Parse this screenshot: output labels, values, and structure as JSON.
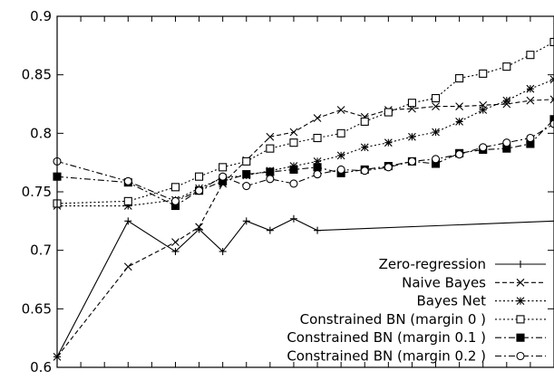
{
  "chart_data": {
    "type": "line",
    "title": "",
    "xlabel": "",
    "ylabel": "",
    "ylim": [
      0.6,
      0.9
    ],
    "xlim": [
      0,
      21
    ],
    "yticks": [
      "0.6",
      "0.65",
      "0.7",
      "0.75",
      "0.8",
      "0.85",
      "0.9"
    ],
    "grid": false,
    "legend_position": "bottom-right",
    "series": [
      {
        "name": "Zero-regression",
        "marker": "plus",
        "dash": "solid",
        "x": [
          0,
          3,
          5,
          6,
          7,
          8,
          9,
          10,
          11,
          21
        ],
        "y": [
          0.609,
          0.725,
          0.699,
          0.718,
          0.699,
          0.725,
          0.717,
          0.727,
          0.717,
          0.725
        ]
      },
      {
        "name": "Naive Bayes",
        "marker": "x",
        "dash": "dashed",
        "x": [
          0,
          3,
          5,
          6,
          7,
          8,
          9,
          10,
          11,
          12,
          13,
          14,
          15,
          16,
          17,
          18,
          19,
          20,
          21
        ],
        "y": [
          0.609,
          0.686,
          0.707,
          0.72,
          0.757,
          0.777,
          0.797,
          0.801,
          0.813,
          0.82,
          0.814,
          0.82,
          0.821,
          0.823,
          0.823,
          0.824,
          0.825,
          0.828,
          0.829
        ]
      },
      {
        "name": "Bayes Net",
        "marker": "star",
        "dash": "dotted",
        "x": [
          0,
          3,
          5,
          6,
          7,
          8,
          9,
          10,
          11,
          12,
          13,
          14,
          15,
          16,
          17,
          18,
          19,
          20,
          21
        ],
        "y": [
          0.738,
          0.738,
          0.743,
          0.753,
          0.762,
          0.764,
          0.768,
          0.772,
          0.776,
          0.781,
          0.788,
          0.792,
          0.797,
          0.801,
          0.81,
          0.82,
          0.828,
          0.838,
          0.846
        ]
      },
      {
        "name": "Constrained BN (margin 0 )",
        "marker": "square-open",
        "dash": "dotted",
        "x": [
          0,
          3,
          5,
          6,
          7,
          8,
          9,
          10,
          11,
          12,
          13,
          14,
          15,
          16,
          17,
          18,
          19,
          20,
          21
        ],
        "y": [
          0.74,
          0.742,
          0.754,
          0.763,
          0.771,
          0.776,
          0.787,
          0.792,
          0.796,
          0.8,
          0.81,
          0.818,
          0.826,
          0.83,
          0.847,
          0.851,
          0.857,
          0.867,
          0.878
        ]
      },
      {
        "name": "Constrained BN (margin 0.1 )",
        "marker": "square-filled",
        "dash": "dashdot",
        "x": [
          0,
          3,
          5,
          6,
          7,
          8,
          9,
          10,
          11,
          12,
          13,
          14,
          15,
          16,
          17,
          18,
          19,
          20,
          21
        ],
        "y": [
          0.763,
          0.758,
          0.738,
          0.751,
          0.759,
          0.765,
          0.767,
          0.769,
          0.771,
          0.766,
          0.769,
          0.772,
          0.776,
          0.774,
          0.783,
          0.786,
          0.787,
          0.791,
          0.812
        ]
      },
      {
        "name": "Constrained BN (margin 0.2 )",
        "marker": "circle-open",
        "dash": "dashdot",
        "x": [
          0,
          3,
          5,
          6,
          7,
          8,
          9,
          10,
          11,
          12,
          13,
          14,
          15,
          16,
          17,
          18,
          19,
          20,
          21
        ],
        "y": [
          0.776,
          0.759,
          0.742,
          0.751,
          0.763,
          0.755,
          0.761,
          0.757,
          0.765,
          0.769,
          0.768,
          0.771,
          0.776,
          0.778,
          0.782,
          0.788,
          0.792,
          0.796,
          0.808
        ]
      }
    ]
  }
}
